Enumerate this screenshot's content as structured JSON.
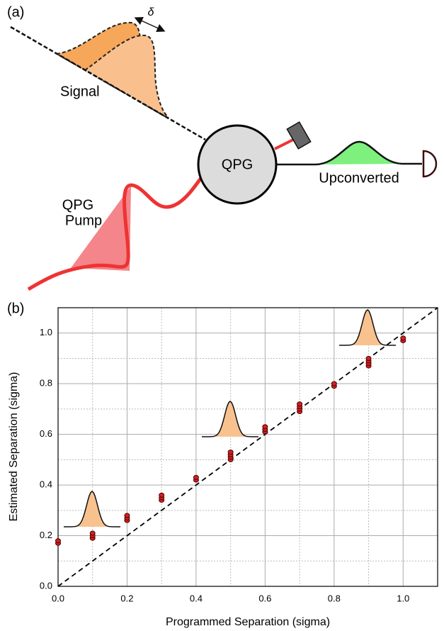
{
  "diagram": {
    "panel_label": "(a)",
    "delta": "δ",
    "signal": "Signal",
    "qpg": "QPG",
    "upconverted": "Upconverted",
    "pump_line1": "QPG",
    "pump_line2": "Pump"
  },
  "chart_data": {
    "type": "scatter",
    "panel_label": "(b)",
    "x_label": "Programmed Separation (sigma)",
    "y_label": "Estimated Separation (sigma)",
    "x": [
      0,
      0,
      0.1,
      0.1,
      0.1,
      0.2,
      0.2,
      0.2,
      0.3,
      0.3,
      0.3,
      0.4,
      0.4,
      0.5,
      0.5,
      0.5,
      0.5,
      0.6,
      0.6,
      0.6,
      0.7,
      0.7,
      0.7,
      0.7,
      0.8,
      0.8,
      0.9,
      0.9,
      0.9,
      0.9,
      1,
      1
    ],
    "values": [
      0.17,
      0.18,
      0.19,
      0.2,
      0.21,
      0.26,
      0.27,
      0.28,
      0.34,
      0.35,
      0.36,
      0.42,
      0.43,
      0.5,
      0.51,
      0.52,
      0.53,
      0.61,
      0.62,
      0.63,
      0.69,
      0.7,
      0.71,
      0.72,
      0.79,
      0.8,
      0.87,
      0.88,
      0.89,
      0.9,
      0.97,
      0.98
    ],
    "color": "#d42020",
    "reference_line": {
      "x": [
        0,
        1.1
      ],
      "values": [
        0,
        1.1
      ]
    },
    "xlim": [
      0,
      1.1
    ],
    "ylim": [
      0,
      1.1
    ],
    "xticks": [
      {
        "value": 0,
        "label": "0.0"
      },
      0.2,
      0.4,
      0.6,
      0.8,
      {
        "value": 1,
        "label": "1.0"
      }
    ],
    "yticks": [
      {
        "value": 0,
        "label": "0.0"
      },
      0.2,
      0.4,
      0.6,
      0.8,
      {
        "value": 1,
        "label": "1.0"
      }
    ],
    "xminorticks": [
      0.1,
      0.3,
      0.5,
      0.7,
      0.9
    ],
    "yminorticks": [
      0.1,
      0.3,
      0.5,
      0.7,
      0.9
    ],
    "grid": true
  }
}
